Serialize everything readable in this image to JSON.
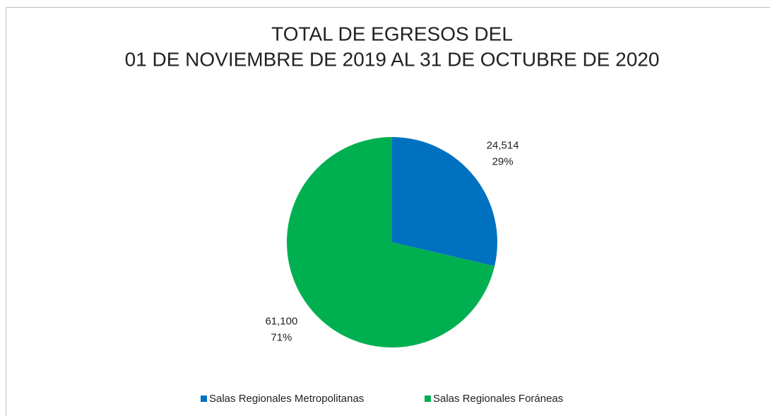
{
  "chart_data": {
    "type": "pie",
    "title": [
      "TOTAL DE EGRESOS DEL",
      "01 DE NOVIEMBRE DE 2019 AL 31 DE OCTUBRE DE 2020"
    ],
    "categories": [
      "Salas Regionales Metropolitanas",
      "Salas Regionales Foráneas"
    ],
    "values": [
      24514,
      61100
    ],
    "value_labels": [
      "24,514",
      "61,100"
    ],
    "percentages": [
      29,
      71
    ],
    "percentage_labels": [
      "29%",
      "71%"
    ],
    "colors": [
      "#0070c0",
      "#00b050"
    ],
    "legend": "bottom"
  }
}
